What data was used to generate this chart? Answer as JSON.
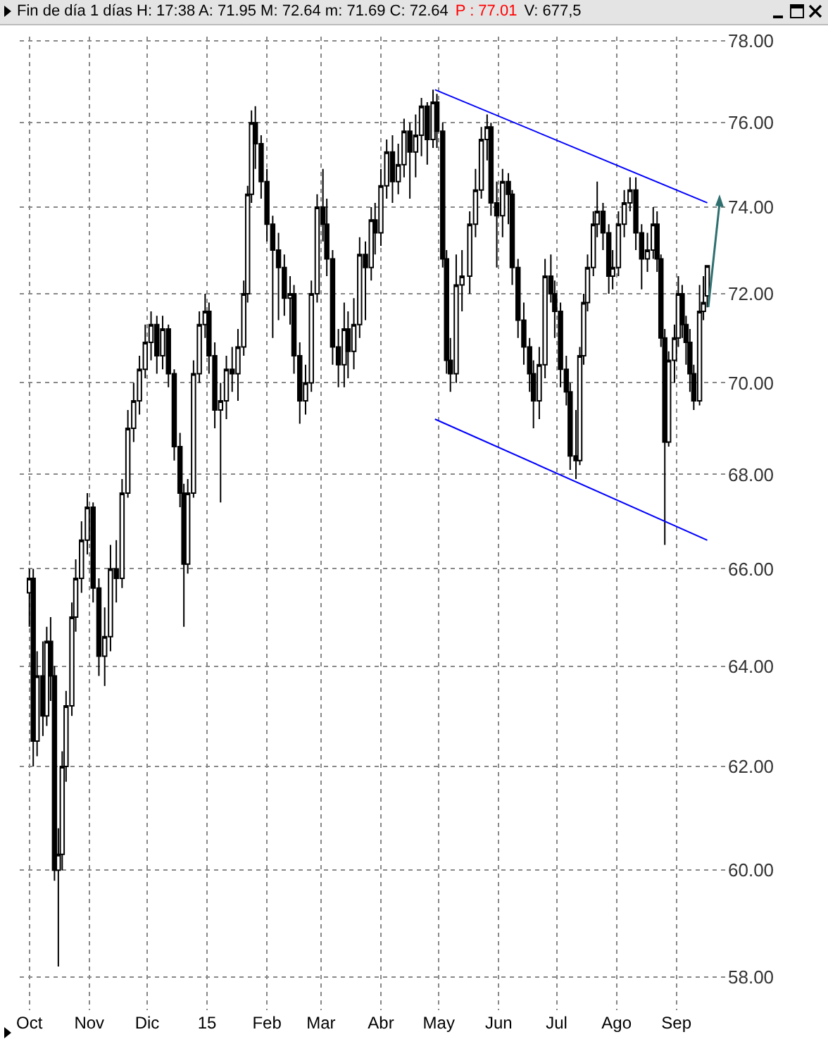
{
  "chart_data": {
    "type": "candlestick",
    "title": "Fin de día 1 días  H: 17:38  A: 71.95  M: 72.64  m: 71.69  C: 72.64",
    "annotations": [
      "P : 77.01",
      "V: 677,5"
    ],
    "x": [
      "2014-10-01",
      "2014-10-03",
      "2014-10-05",
      "2014-10-08",
      "2014-10-10",
      "2014-10-12",
      "2014-10-14",
      "2014-10-16",
      "2014-10-18",
      "2014-10-20",
      "2014-10-23",
      "2014-10-25",
      "2014-10-28",
      "2014-10-31",
      "2014-11-03",
      "2014-11-06",
      "2014-11-09",
      "2014-11-12",
      "2014-11-15",
      "2014-11-18",
      "2014-11-21",
      "2014-11-24",
      "2014-11-27",
      "2014-11-30",
      "2014-12-03",
      "2014-12-06",
      "2014-12-09",
      "2014-12-12",
      "2014-12-15",
      "2014-12-18",
      "2014-12-20",
      "2014-12-22",
      "2014-12-25",
      "2014-12-28",
      "2014-12-31",
      "2015-01-02",
      "2015-01-05",
      "2015-01-08",
      "2015-01-11",
      "2015-01-14",
      "2015-01-17",
      "2015-01-20",
      "2015-01-22",
      "2015-01-24",
      "2015-01-26",
      "2015-01-29",
      "2015-02-01",
      "2015-02-04",
      "2015-02-07",
      "2015-02-10",
      "2015-02-13",
      "2015-02-15",
      "2015-02-18",
      "2015-02-21",
      "2015-02-24",
      "2015-02-27",
      "2015-03-02",
      "2015-03-04",
      "2015-03-07",
      "2015-03-10",
      "2015-03-13",
      "2015-03-15",
      "2015-03-18",
      "2015-03-21",
      "2015-03-24",
      "2015-03-27",
      "2015-03-29",
      "2015-04-01",
      "2015-04-04",
      "2015-04-07",
      "2015-04-10",
      "2015-04-13",
      "2015-04-16",
      "2015-04-19",
      "2015-04-22",
      "2015-04-25",
      "2015-04-28",
      "2015-04-30",
      "2015-05-03",
      "2015-05-05",
      "2015-05-07",
      "2015-05-10",
      "2015-05-13",
      "2015-05-17",
      "2015-05-20",
      "2015-05-23",
      "2015-05-26",
      "2015-05-28",
      "2015-05-31",
      "2015-06-03",
      "2015-06-06",
      "2015-06-08",
      "2015-06-11",
      "2015-06-14",
      "2015-06-17",
      "2015-06-19",
      "2015-06-22",
      "2015-06-25",
      "2015-06-28",
      "2015-06-30",
      "2015-07-03",
      "2015-07-06",
      "2015-07-08",
      "2015-07-11",
      "2015-07-13",
      "2015-07-15",
      "2015-07-17",
      "2015-07-20",
      "2015-07-22",
      "2015-07-25",
      "2015-07-28",
      "2015-07-30",
      "2015-08-02",
      "2015-08-05",
      "2015-08-08",
      "2015-08-11",
      "2015-08-14",
      "2015-08-17",
      "2015-08-20",
      "2015-08-22",
      "2015-08-24",
      "2015-08-26",
      "2015-08-28",
      "2015-08-31",
      "2015-09-02",
      "2015-09-04",
      "2015-09-06",
      "2015-09-08",
      "2015-09-10",
      "2015-09-13",
      "2015-09-15",
      "2015-09-17"
    ],
    "ohlc": [
      [
        65.5,
        66.0,
        64.8,
        65.8
      ],
      [
        65.8,
        66.0,
        62.0,
        62.5
      ],
      [
        62.5,
        64.3,
        62.2,
        63.8
      ],
      [
        63.8,
        64.5,
        62.6,
        63.0
      ],
      [
        63.0,
        64.8,
        62.8,
        64.5
      ],
      [
        64.5,
        65.0,
        63.3,
        63.8
      ],
      [
        63.8,
        64.0,
        59.8,
        60.0
      ],
      [
        60.0,
        60.8,
        58.2,
        60.3
      ],
      [
        60.3,
        62.3,
        60.0,
        62.0
      ],
      [
        62.0,
        63.5,
        61.7,
        63.2
      ],
      [
        63.2,
        65.3,
        63.0,
        65.0
      ],
      [
        65.0,
        66.2,
        64.7,
        65.8
      ],
      [
        65.8,
        67.0,
        65.5,
        66.6
      ],
      [
        66.6,
        67.6,
        66.3,
        67.3
      ],
      [
        67.3,
        67.4,
        65.3,
        65.6
      ],
      [
        65.6,
        65.8,
        63.8,
        64.2
      ],
      [
        64.2,
        65.2,
        63.6,
        64.6
      ],
      [
        64.6,
        66.5,
        64.3,
        66.0
      ],
      [
        66.0,
        66.6,
        65.3,
        65.8
      ],
      [
        65.8,
        67.9,
        65.6,
        67.6
      ],
      [
        67.6,
        69.4,
        67.5,
        69.0
      ],
      [
        69.0,
        70.0,
        68.7,
        69.6
      ],
      [
        69.6,
        70.6,
        69.3,
        70.3
      ],
      [
        70.3,
        71.3,
        70.1,
        70.9
      ],
      [
        70.9,
        71.6,
        70.5,
        71.3
      ],
      [
        71.3,
        71.5,
        70.2,
        70.6
      ],
      [
        70.6,
        71.5,
        70.3,
        71.2
      ],
      [
        71.2,
        71.3,
        69.9,
        70.2
      ],
      [
        70.2,
        70.3,
        68.3,
        68.6
      ],
      [
        68.6,
        68.9,
        67.3,
        67.6
      ],
      [
        67.6,
        67.8,
        64.8,
        66.1
      ],
      [
        66.1,
        67.9,
        65.9,
        67.6
      ],
      [
        67.6,
        70.5,
        67.5,
        70.2
      ],
      [
        70.2,
        71.6,
        70.0,
        71.3
      ],
      [
        71.3,
        72.0,
        71.0,
        71.6
      ],
      [
        71.6,
        71.8,
        70.2,
        70.6
      ],
      [
        70.6,
        70.9,
        69.0,
        69.4
      ],
      [
        69.4,
        70.0,
        67.4,
        69.6
      ],
      [
        69.6,
        70.6,
        69.2,
        70.3
      ],
      [
        70.3,
        70.8,
        69.8,
        70.2
      ],
      [
        70.2,
        71.2,
        69.6,
        70.8
      ],
      [
        70.8,
        72.3,
        70.6,
        72.0
      ],
      [
        72.0,
        74.5,
        71.8,
        74.3
      ],
      [
        74.3,
        76.3,
        74.1,
        76.0
      ],
      [
        76.0,
        76.4,
        74.9,
        75.5
      ],
      [
        75.5,
        75.7,
        74.2,
        74.6
      ],
      [
        74.6,
        74.9,
        73.2,
        73.6
      ],
      [
        73.6,
        73.8,
        71.0,
        73.0
      ],
      [
        73.0,
        73.4,
        71.4,
        72.6
      ],
      [
        72.6,
        72.9,
        71.5,
        71.9
      ],
      [
        71.9,
        72.4,
        71.3,
        72.0
      ],
      [
        72.0,
        72.2,
        70.2,
        70.6
      ],
      [
        70.6,
        70.9,
        69.1,
        69.6
      ],
      [
        69.6,
        70.4,
        69.3,
        70.0
      ],
      [
        70.0,
        72.3,
        69.8,
        72.0
      ],
      [
        72.0,
        74.3,
        71.8,
        74.0
      ],
      [
        74.0,
        74.9,
        73.2,
        73.6
      ],
      [
        73.6,
        74.2,
        72.4,
        72.8
      ],
      [
        72.8,
        73.0,
        70.4,
        70.8
      ],
      [
        70.8,
        71.2,
        69.9,
        70.4
      ],
      [
        70.4,
        71.8,
        69.9,
        71.2
      ],
      [
        71.2,
        71.6,
        70.1,
        70.7
      ],
      [
        70.7,
        71.9,
        70.3,
        71.3
      ],
      [
        71.3,
        73.3,
        71.0,
        72.9
      ],
      [
        72.9,
        73.2,
        71.4,
        72.6
      ],
      [
        72.6,
        74.0,
        72.3,
        73.7
      ],
      [
        73.7,
        74.1,
        72.9,
        73.4
      ],
      [
        73.4,
        74.9,
        73.1,
        74.5
      ],
      [
        74.5,
        75.6,
        74.2,
        75.3
      ],
      [
        75.3,
        75.7,
        74.1,
        74.6
      ],
      [
        74.6,
        75.5,
        74.3,
        75.0
      ],
      [
        75.0,
        76.1,
        74.7,
        75.8
      ],
      [
        75.8,
        76.0,
        74.2,
        75.3
      ],
      [
        75.3,
        76.2,
        74.7,
        75.7
      ],
      [
        75.7,
        76.6,
        75.2,
        76.4
      ],
      [
        76.4,
        76.5,
        75.0,
        75.6
      ],
      [
        75.6,
        76.8,
        75.4,
        76.5
      ],
      [
        76.5,
        76.7,
        75.4,
        75.8
      ],
      [
        75.8,
        76.0,
        72.6,
        72.8
      ],
      [
        72.8,
        73.0,
        70.2,
        70.5
      ],
      [
        70.5,
        71.0,
        69.8,
        70.2
      ],
      [
        70.2,
        72.9,
        70.0,
        72.2
      ],
      [
        72.2,
        73.0,
        71.6,
        72.4
      ],
      [
        72.4,
        73.9,
        72.0,
        73.6
      ],
      [
        73.6,
        74.9,
        73.3,
        74.4
      ],
      [
        74.4,
        75.9,
        74.2,
        75.6
      ],
      [
        75.6,
        76.2,
        75.1,
        75.9
      ],
      [
        75.9,
        76.0,
        73.8,
        74.1
      ],
      [
        74.1,
        74.6,
        72.6,
        73.8
      ],
      [
        73.8,
        74.9,
        73.3,
        74.6
      ],
      [
        74.6,
        74.8,
        73.6,
        74.3
      ],
      [
        74.3,
        74.4,
        72.2,
        72.6
      ],
      [
        72.6,
        72.8,
        71.0,
        71.4
      ],
      [
        71.4,
        71.8,
        70.4,
        70.8
      ],
      [
        70.8,
        71.0,
        69.8,
        70.2
      ],
      [
        70.2,
        70.5,
        69.0,
        69.6
      ],
      [
        69.6,
        70.8,
        69.2,
        70.4
      ],
      [
        70.4,
        72.8,
        70.1,
        72.4
      ],
      [
        72.4,
        72.9,
        71.8,
        72.0
      ],
      [
        72.0,
        72.3,
        71.0,
        71.6
      ],
      [
        71.6,
        71.8,
        69.9,
        70.3
      ],
      [
        70.3,
        70.6,
        69.5,
        69.8
      ],
      [
        69.8,
        70.0,
        68.1,
        68.4
      ],
      [
        68.4,
        69.4,
        67.9,
        68.3
      ],
      [
        68.3,
        70.8,
        68.2,
        70.6
      ],
      [
        70.6,
        72.0,
        70.4,
        71.8
      ],
      [
        71.8,
        72.9,
        71.6,
        72.6
      ],
      [
        72.6,
        73.9,
        72.4,
        73.6
      ],
      [
        73.6,
        74.6,
        73.3,
        73.9
      ],
      [
        73.9,
        74.1,
        73.0,
        73.4
      ],
      [
        73.4,
        73.6,
        72.0,
        72.4
      ],
      [
        72.4,
        73.0,
        72.1,
        72.6
      ],
      [
        72.6,
        73.9,
        72.4,
        73.6
      ],
      [
        73.6,
        74.4,
        73.3,
        74.1
      ],
      [
        74.1,
        74.7,
        73.9,
        74.4
      ],
      [
        74.4,
        74.7,
        73.0,
        73.4
      ],
      [
        73.4,
        73.6,
        72.1,
        72.8
      ],
      [
        72.8,
        73.4,
        72.5,
        73.0
      ],
      [
        73.0,
        74.0,
        72.8,
        73.6
      ],
      [
        73.6,
        73.9,
        72.5,
        72.8
      ],
      [
        72.8,
        72.9,
        70.8,
        71.0
      ],
      [
        71.0,
        71.2,
        66.5,
        68.7
      ],
      [
        68.7,
        70.7,
        68.6,
        70.5
      ],
      [
        70.5,
        71.3,
        70.0,
        71.0
      ],
      [
        71.0,
        72.4,
        70.8,
        72.0
      ],
      [
        72.0,
        72.2,
        71.0,
        71.3
      ],
      [
        71.3,
        71.5,
        70.4,
        70.9
      ],
      [
        70.9,
        71.2,
        69.8,
        70.2
      ],
      [
        70.2,
        70.4,
        69.4,
        69.6
      ],
      [
        69.6,
        72.2,
        69.5,
        71.6
      ],
      [
        71.6,
        72.4,
        71.4,
        71.8
      ],
      [
        71.95,
        72.64,
        71.69,
        72.64
      ]
    ],
    "series": [
      {
        "type": "line",
        "color": "#0000ff",
        "x": [
          "2015-04-29",
          "2015-09-17"
        ],
        "values": [
          76.8,
          74.1
        ]
      },
      {
        "type": "line",
        "color": "#0000ff",
        "x": [
          "2015-04-29",
          "2015-09-17"
        ],
        "values": [
          69.2,
          66.6
        ]
      }
    ],
    "log": true,
    "ylim": [
      57.4,
      78.1
    ],
    "yticks": [
      {
        "value": 58,
        "label": "58.00"
      },
      {
        "value": 60,
        "label": "60.00"
      },
      {
        "value": 62,
        "label": "62.00"
      },
      {
        "value": 64,
        "label": "64.00"
      },
      {
        "value": 66,
        "label": "66.00"
      },
      {
        "value": 68,
        "label": "68.00"
      },
      {
        "value": 70,
        "label": "70.00"
      },
      {
        "value": 72,
        "label": "72.00"
      },
      {
        "value": 74,
        "label": "74.00"
      },
      {
        "value": 76,
        "label": "76.00"
      },
      {
        "value": 78,
        "label": "78.00"
      }
    ],
    "xlim": [
      "2014-09-26",
      "2015-09-27"
    ],
    "xticks": [
      {
        "value": "2014-10-01",
        "label": "Oct"
      },
      {
        "value": "2014-11-01",
        "label": "Nov"
      },
      {
        "value": "2014-12-01",
        "label": "Dic"
      },
      {
        "value": "2015-01-01",
        "label": "15"
      },
      {
        "value": "2015-02-01",
        "label": "Feb"
      },
      {
        "value": "2015-03-01",
        "label": "Mar"
      },
      {
        "value": "2015-04-01",
        "label": "Abr"
      },
      {
        "value": "2015-05-01",
        "label": "May"
      },
      {
        "value": "2015-06-01",
        "label": "Jun"
      },
      {
        "value": "2015-07-01",
        "label": "Jul"
      },
      {
        "value": "2015-08-01",
        "label": "Ago"
      },
      {
        "value": "2015-09-01",
        "label": "Sep"
      }
    ],
    "grid": true
  }
}
